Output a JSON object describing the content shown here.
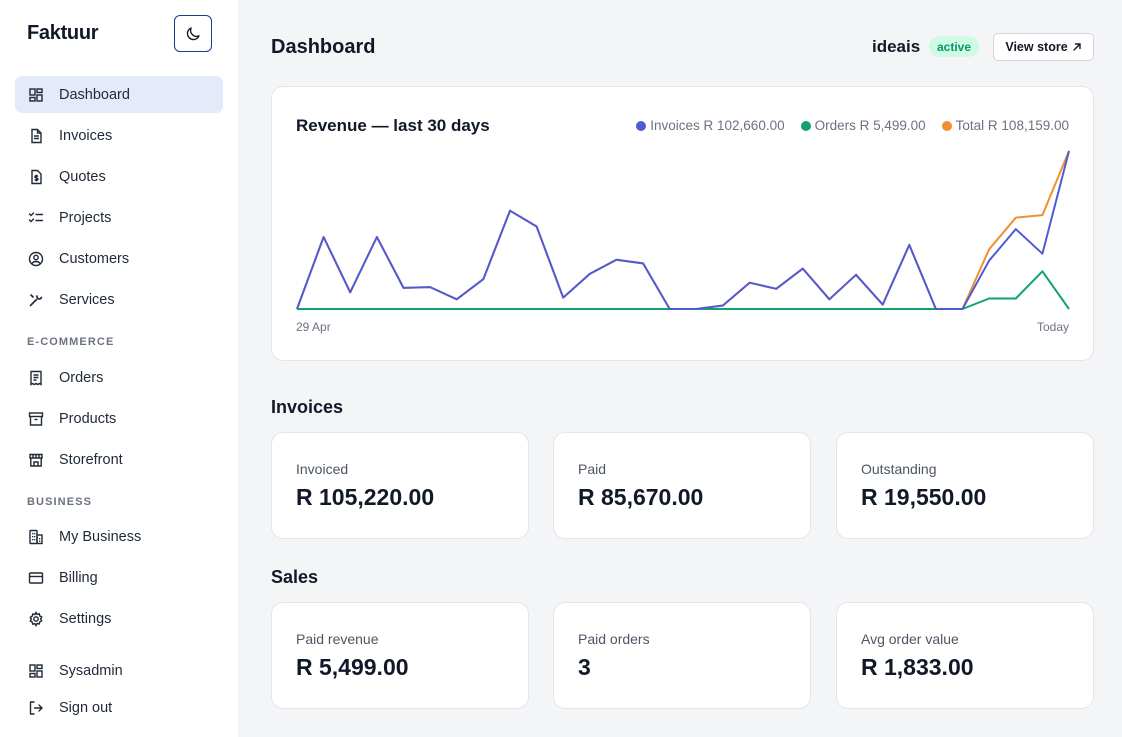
{
  "sidebar": {
    "brand": "Faktuur",
    "theme_toggle_icon": "moon-icon",
    "items": [
      {
        "label": "Dashboard",
        "icon": "dashboard-icon"
      },
      {
        "label": "Invoices",
        "icon": "document-icon"
      },
      {
        "label": "Quotes",
        "icon": "dollar-document-icon"
      },
      {
        "label": "Projects",
        "icon": "checklist-icon"
      },
      {
        "label": "Customers",
        "icon": "user-circle-icon"
      },
      {
        "label": "Services",
        "icon": "tools-icon"
      }
    ],
    "ecommerce_label": "E-COMMERCE",
    "ecommerce_items": [
      {
        "label": "Orders",
        "icon": "receipt-icon"
      },
      {
        "label": "Products",
        "icon": "archive-box-icon"
      },
      {
        "label": "Storefront",
        "icon": "storefront-icon"
      }
    ],
    "business_label": "BUSINESS",
    "business_items": [
      {
        "label": "My Business",
        "icon": "building-icon"
      },
      {
        "label": "Billing",
        "icon": "credit-card-icon"
      },
      {
        "label": "Settings",
        "icon": "gear-icon"
      }
    ],
    "footer_items": [
      {
        "label": "Sysadmin",
        "icon": "dashboard-icon"
      },
      {
        "label": "Sign out",
        "icon": "sign-out-icon"
      }
    ]
  },
  "header": {
    "title": "Dashboard",
    "store_name": "ideais",
    "status": "active",
    "view_store_label": "View store",
    "view_store_icon": "external-arrow-icon"
  },
  "colors": {
    "invoices": "#4f5bd5",
    "orders": "#10a36f",
    "total": "#f0902e",
    "active_bg": "#e5eafb"
  },
  "chart_data": {
    "type": "line",
    "title": "Revenue — last 30 days",
    "x_start_label": "29 Apr",
    "x_end_label": "Today",
    "legend": [
      {
        "text": "Invoices R 102,660.00",
        "color": "#4f5bd5"
      },
      {
        "text": "Orders R 5,499.00",
        "color": "#10a36f"
      },
      {
        "text": "Total R 108,159.00",
        "color": "#f0902e"
      }
    ],
    "ylim": [
      0,
      18000
    ],
    "grid": false,
    "series": [
      {
        "name": "Invoices",
        "color": "#4f5bd5",
        "values": [
          0,
          8200,
          1900,
          8200,
          2400,
          2500,
          1100,
          3400,
          11200,
          9400,
          1300,
          4000,
          5600,
          5200,
          0,
          0,
          400,
          3000,
          2300,
          4600,
          1100,
          3900,
          500,
          7300,
          0,
          0,
          5500,
          9100,
          6300,
          18000
        ]
      },
      {
        "name": "Orders",
        "color": "#10a36f",
        "values": [
          0,
          0,
          0,
          0,
          0,
          0,
          0,
          0,
          0,
          0,
          0,
          0,
          0,
          0,
          0,
          0,
          0,
          0,
          0,
          0,
          0,
          0,
          0,
          0,
          0,
          0,
          1200,
          1200,
          4300,
          0
        ]
      },
      {
        "name": "Total",
        "color": "#f0902e",
        "values": [
          0,
          8200,
          1900,
          8200,
          2400,
          2500,
          1100,
          3400,
          11200,
          9400,
          1300,
          4000,
          5600,
          5200,
          0,
          0,
          400,
          3000,
          2300,
          4600,
          1100,
          3900,
          500,
          7300,
          0,
          0,
          6800,
          10400,
          10700,
          18000
        ]
      }
    ]
  },
  "invoices_section": {
    "title": "Invoices",
    "cards": [
      {
        "label": "Invoiced",
        "value": "R 105,220.00"
      },
      {
        "label": "Paid",
        "value": "R 85,670.00"
      },
      {
        "label": "Outstanding",
        "value": "R 19,550.00"
      }
    ]
  },
  "sales_section": {
    "title": "Sales",
    "cards": [
      {
        "label": "Paid revenue",
        "value": "R 5,499.00"
      },
      {
        "label": "Paid orders",
        "value": "3"
      },
      {
        "label": "Avg order value",
        "value": "R 1,833.00"
      }
    ]
  }
}
